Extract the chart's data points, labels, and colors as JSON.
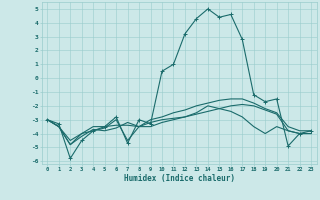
{
  "xlabel": "Humidex (Indice chaleur)",
  "bg_color": "#cce8e8",
  "grid_color": "#99cccc",
  "line_color": "#1a6b6b",
  "x_values": [
    0,
    1,
    2,
    3,
    4,
    5,
    6,
    7,
    8,
    9,
    10,
    11,
    12,
    13,
    14,
    15,
    16,
    17,
    18,
    19,
    20,
    21,
    22,
    23
  ],
  "series1": [
    -3.0,
    -3.3,
    -5.8,
    -4.5,
    -3.8,
    -3.5,
    -2.8,
    -4.7,
    -3.0,
    -3.3,
    0.5,
    1.0,
    3.2,
    4.3,
    5.0,
    4.4,
    4.6,
    2.8,
    -1.2,
    -1.7,
    -1.5,
    -4.9,
    -4.0,
    -3.8
  ],
  "series2": [
    -3.0,
    -3.5,
    -4.8,
    -4.2,
    -3.7,
    -3.8,
    -3.6,
    -3.2,
    -3.5,
    -3.0,
    -2.8,
    -2.5,
    -2.3,
    -2.0,
    -1.8,
    -1.6,
    -1.5,
    -1.5,
    -1.8,
    -2.2,
    -2.5,
    -3.5,
    -3.8,
    -3.8
  ],
  "series3": [
    -3.0,
    -3.5,
    -4.5,
    -4.0,
    -3.5,
    -3.5,
    -3.4,
    -3.4,
    -3.5,
    -3.2,
    -3.0,
    -2.9,
    -2.8,
    -2.6,
    -2.4,
    -2.2,
    -2.0,
    -1.9,
    -2.0,
    -2.3,
    -2.6,
    -3.8,
    -4.0,
    -4.0
  ],
  "series4": [
    -3.0,
    -3.5,
    -4.8,
    -4.0,
    -3.8,
    -3.6,
    -3.0,
    -4.5,
    -3.5,
    -3.5,
    -3.2,
    -3.0,
    -2.8,
    -2.5,
    -2.0,
    -2.2,
    -2.4,
    -2.8,
    -3.5,
    -4.0,
    -3.5,
    -3.8,
    -4.0,
    -4.0
  ],
  "ylim": [
    -6.2,
    5.5
  ],
  "yticks": [
    -6,
    -5,
    -4,
    -3,
    -2,
    -1,
    0,
    1,
    2,
    3,
    4,
    5
  ],
  "xlim": [
    -0.5,
    23.5
  ]
}
